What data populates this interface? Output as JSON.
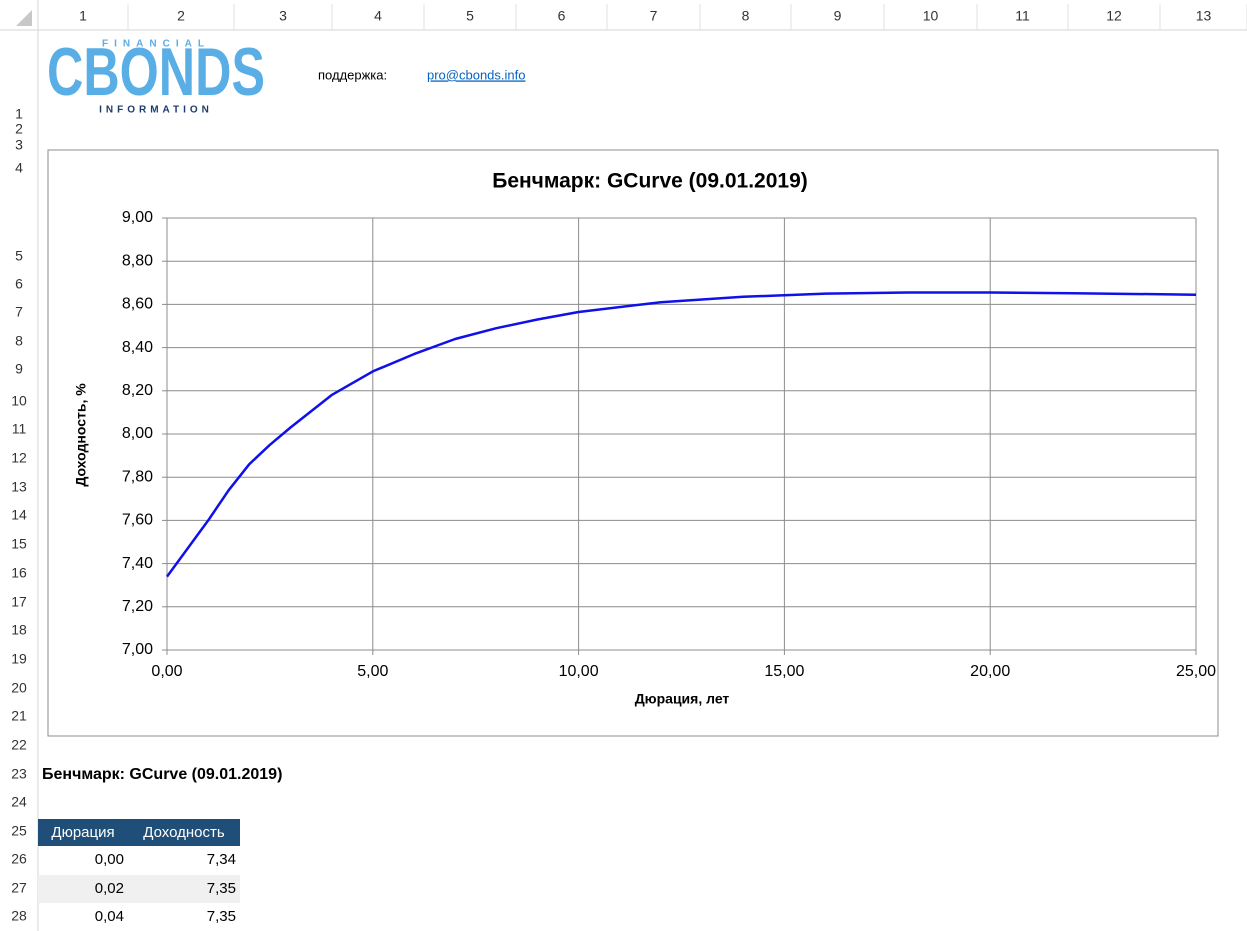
{
  "sheet": {
    "columns": [
      1,
      2,
      3,
      4,
      5,
      6,
      7,
      8,
      9,
      10,
      11,
      12,
      13
    ],
    "rows": [
      1,
      2,
      3,
      4,
      5,
      6,
      7,
      8,
      9,
      10,
      11,
      12,
      13,
      14,
      15,
      16,
      17,
      18,
      19,
      20,
      21,
      22,
      23,
      24,
      25,
      26,
      27,
      28
    ]
  },
  "logo": {
    "top": "FINANCIAL",
    "main": "CBONDS",
    "bottom": "INFORMATION"
  },
  "support": {
    "label": "поддержка:",
    "email": "pro@cbonds.info"
  },
  "chart_data": {
    "type": "line",
    "title": "Бенчмарк: GCurve (09.01.2019)",
    "x_label": "Дюрация, лет",
    "y_label": "Доходность, %",
    "x": [
      0,
      0.5,
      1,
      1.5,
      2,
      2.5,
      3,
      4,
      5,
      6,
      7,
      8,
      9,
      10,
      12,
      14,
      16,
      18,
      20,
      22,
      25
    ],
    "series": [
      {
        "name": "GCurve",
        "color": "#1010e8",
        "values": [
          7.34,
          7.47,
          7.6,
          7.74,
          7.86,
          7.95,
          8.03,
          8.18,
          8.29,
          8.37,
          8.44,
          8.49,
          8.53,
          8.565,
          8.61,
          8.635,
          8.65,
          8.655,
          8.655,
          8.652,
          8.645
        ]
      }
    ],
    "xlim": [
      0,
      25
    ],
    "ylim": [
      7,
      9
    ],
    "xticks": [
      {
        "value": 0,
        "label": "0,00"
      },
      {
        "value": 5,
        "label": "5,00"
      },
      {
        "value": 10,
        "label": "10,00"
      },
      {
        "value": 15,
        "label": "15,00"
      },
      {
        "value": 20,
        "label": "20,00"
      },
      {
        "value": 25,
        "label": "25,00"
      }
    ],
    "yticks": [
      {
        "value": 7,
        "label": "7,00"
      },
      {
        "value": 7.2,
        "label": "7,20"
      },
      {
        "value": 7.4,
        "label": "7,40"
      },
      {
        "value": 7.6,
        "label": "7,60"
      },
      {
        "value": 7.8,
        "label": "7,80"
      },
      {
        "value": 8,
        "label": "8,00"
      },
      {
        "value": 8.2,
        "label": "8,20"
      },
      {
        "value": 8.4,
        "label": "8,40"
      },
      {
        "value": 8.6,
        "label": "8,60"
      },
      {
        "value": 8.8,
        "label": "8,80"
      },
      {
        "value": 9,
        "label": "9,00"
      }
    ],
    "grid": true
  },
  "table": {
    "title": "Бенчмарк: GCurve (09.01.2019)",
    "header": [
      "Дюрация",
      "Доходность"
    ],
    "rows": [
      [
        "0,00",
        "7,34"
      ],
      [
        "0,02",
        "7,35"
      ],
      [
        "0,04",
        "7,35"
      ]
    ]
  }
}
